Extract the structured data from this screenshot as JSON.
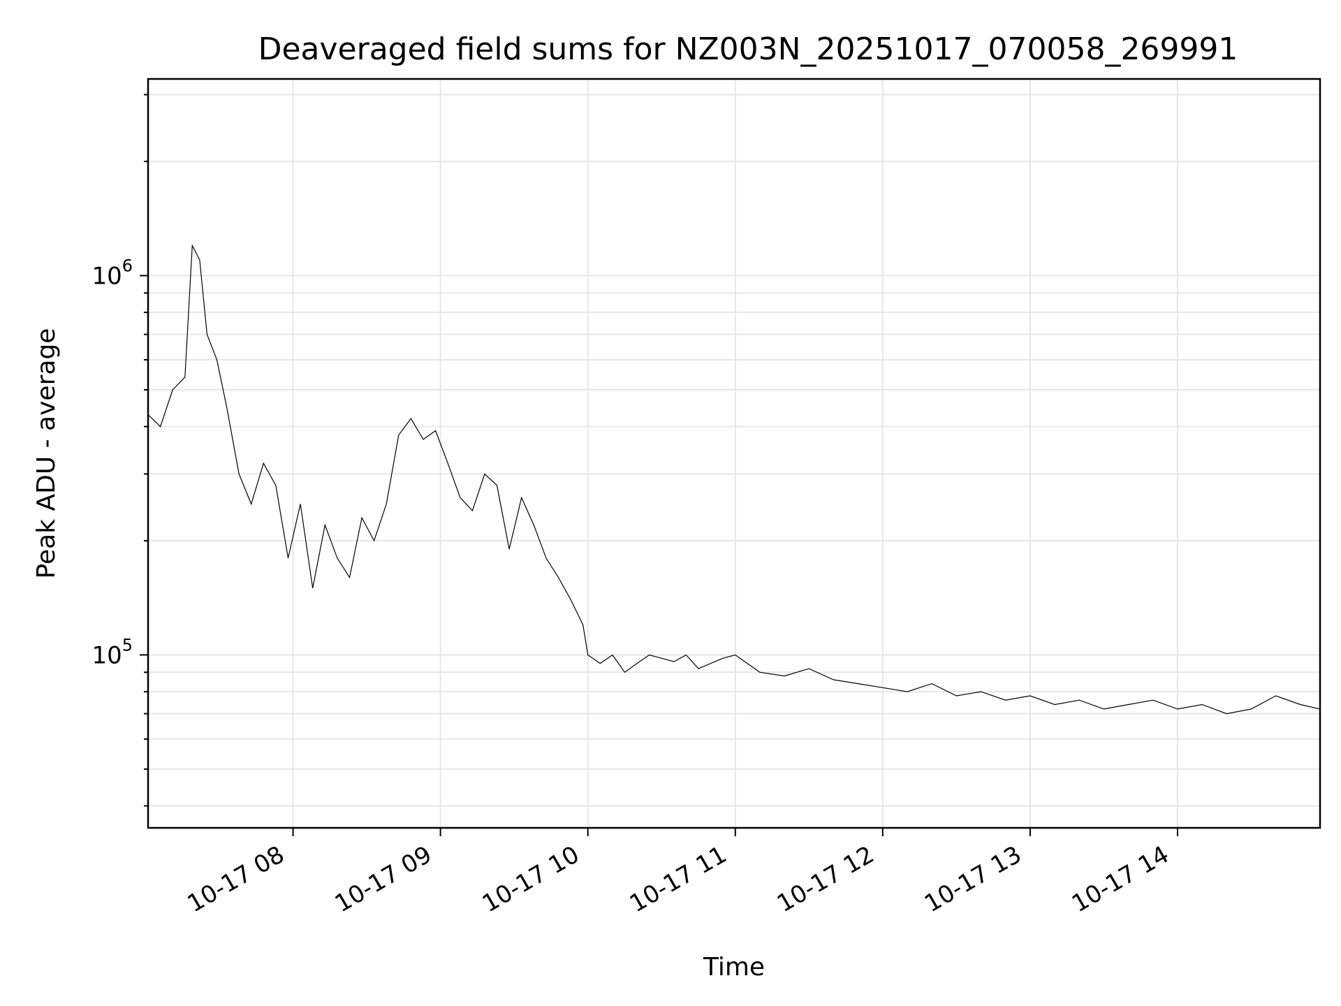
{
  "chart_data": {
    "type": "line",
    "title": "Deaveraged field sums for NZ003N_20251017_070058_269991",
    "xlabel": "Time",
    "ylabel": "Peak ADU - average",
    "yscale": "log",
    "ylim": [
      35000,
      3300000
    ],
    "xlim": [
      "2025-10-17 07:01",
      "2025-10-17 14:58"
    ],
    "grid": true,
    "x_ticks": [
      "10-17 08",
      "10-17 09",
      "10-17 10",
      "10-17 11",
      "10-17 12",
      "10-17 13",
      "10-17 14"
    ],
    "y_ticks": [
      {
        "base": "10",
        "exp": "5",
        "value": 100000
      },
      {
        "base": "10",
        "exp": "6",
        "value": 1000000
      }
    ],
    "line_color": "#000000",
    "series": [
      {
        "x": [
          "07:01",
          "07:06",
          "07:11",
          "07:16",
          "07:19",
          "07:22",
          "07:25",
          "07:29",
          "07:33",
          "07:38",
          "07:43",
          "07:48",
          "07:53",
          "07:58",
          "08:03",
          "08:08",
          "08:13",
          "08:18",
          "08:23",
          "08:28",
          "08:33",
          "08:38",
          "08:43",
          "08:48",
          "08:53",
          "08:58",
          "09:03",
          "09:08",
          "09:13",
          "09:18",
          "09:23",
          "09:28",
          "09:33",
          "09:38",
          "09:43",
          "09:48",
          "09:53",
          "09:58",
          "10:00",
          "10:05",
          "10:10",
          "10:15",
          "10:20",
          "10:25",
          "10:30",
          "10:35",
          "10:40",
          "10:45",
          "10:50",
          "10:55",
          "11:00",
          "11:10",
          "11:20",
          "11:30",
          "11:40",
          "11:50",
          "12:00",
          "12:10",
          "12:20",
          "12:30",
          "12:40",
          "12:50",
          "13:00",
          "13:10",
          "13:20",
          "13:30",
          "13:40",
          "13:50",
          "14:00",
          "14:10",
          "14:20",
          "14:30",
          "14:40",
          "14:50",
          "14:58"
        ],
        "y": [
          430000,
          400000,
          500000,
          540000,
          1200000,
          1100000,
          700000,
          600000,
          450000,
          300000,
          250000,
          320000,
          280000,
          180000,
          250000,
          150000,
          220000,
          180000,
          160000,
          230000,
          200000,
          250000,
          380000,
          420000,
          370000,
          390000,
          320000,
          260000,
          240000,
          300000,
          280000,
          190000,
          260000,
          220000,
          180000,
          160000,
          140000,
          120000,
          100000,
          95000,
          100000,
          90000,
          95000,
          100000,
          98000,
          96000,
          100000,
          92000,
          95000,
          98000,
          100000,
          90000,
          88000,
          92000,
          86000,
          84000,
          82000,
          80000,
          84000,
          78000,
          80000,
          76000,
          78000,
          74000,
          76000,
          72000,
          74000,
          76000,
          72000,
          74000,
          70000,
          72000,
          78000,
          74000,
          72000
        ]
      }
    ]
  }
}
